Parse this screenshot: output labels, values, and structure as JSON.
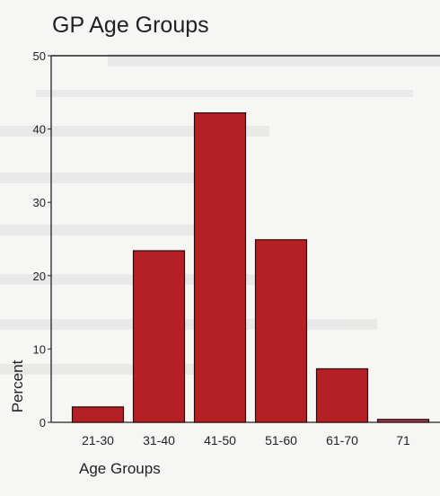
{
  "chart_data": {
    "type": "bar",
    "title": "GP Age Groups",
    "xlabel": "Age Groups",
    "ylabel": "Percent",
    "categories": [
      "21-30",
      "31-40",
      "41-50",
      "51-60",
      "61-70",
      "71"
    ],
    "values": [
      2.1,
      23.4,
      42.2,
      24.9,
      7.3,
      0.4
    ],
    "ylim": [
      0,
      50
    ],
    "yticks": [
      0,
      10,
      20,
      30,
      40,
      50
    ],
    "grid": false,
    "colors": {
      "bar": "#b52025",
      "bar_edge": "#2a0a0a",
      "last_bar": "#9a3b4e"
    }
  }
}
